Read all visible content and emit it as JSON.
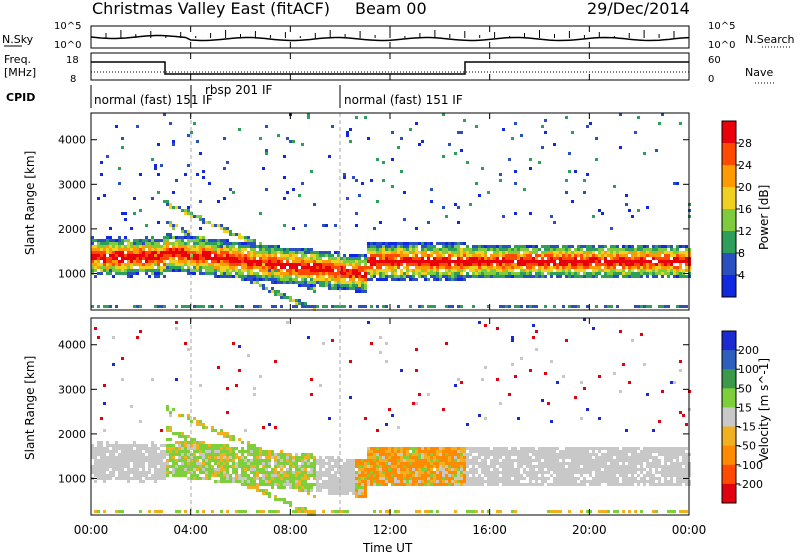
{
  "header": {
    "title": "Christmas Valley East (fitACF)",
    "beam": "Beam 00",
    "date": "29/Dec/2014"
  },
  "noise_panel": {
    "left_label": "N.Sky",
    "right_label": "N.Search",
    "left_ticks": [
      "10^5",
      "10^0"
    ],
    "right_ticks": [
      "10^5",
      "10^0"
    ]
  },
  "freq_panel": {
    "left_label_1": "Freq.",
    "left_label_2": "[MHz]",
    "right_label": "Nave",
    "left_ticks": [
      "18",
      "8"
    ],
    "right_ticks": [
      "60",
      "0"
    ]
  },
  "cpid": {
    "label": "CPID",
    "modes": [
      {
        "name": "normal (fast) 151 IF",
        "start_hour": 0
      },
      {
        "name": "rbsp 201 IF",
        "start_hour": 3
      },
      {
        "name": "normal (fast) 151 IF",
        "start_hour": 10
      }
    ]
  },
  "x_axis": {
    "label": "Time UT",
    "ticks": [
      "00:00",
      "04:00",
      "08:00",
      "12:00",
      "16:00",
      "20:00",
      "00:00"
    ]
  },
  "chart_data": [
    {
      "type": "heatmap",
      "title": "",
      "xlabel": "",
      "ylabel": "Slant Range [km]",
      "xlim": [
        0,
        24
      ],
      "ylim": [
        180,
        4600
      ],
      "yticks": [
        1000,
        2000,
        3000,
        4000
      ],
      "colorbar": {
        "label": "Power [dB]",
        "ticks": [
          "28",
          "24",
          "20",
          "16",
          "12",
          "8",
          "4"
        ],
        "colors": [
          "#e8000b",
          "#ff4a00",
          "#ff9a00",
          "#f0d020",
          "#7ecb3c",
          "#2e9e5b",
          "#2a4fbf",
          "#1028e0"
        ]
      },
      "features": [
        {
          "desc": "main echo band",
          "x_range": [
            0,
            24
          ],
          "range_km": [
            900,
            1900
          ],
          "power_db": [
            8,
            28
          ]
        },
        {
          "desc": "morning descending streaks",
          "x_range": [
            3,
            9
          ],
          "range_km": [
            1000,
            3000
          ],
          "power_db": [
            4,
            20
          ]
        },
        {
          "desc": "ground scatter line",
          "x_range": [
            0,
            24
          ],
          "range_km": [
            250,
            300
          ],
          "power_db": [
            4,
            16
          ]
        }
      ]
    },
    {
      "type": "heatmap",
      "title": "",
      "xlabel": "Time UT",
      "ylabel": "Slant Range [km]",
      "xlim": [
        0,
        24
      ],
      "ylim": [
        180,
        4600
      ],
      "yticks": [
        1000,
        2000,
        3000,
        4000
      ],
      "colorbar": {
        "label": "Velocity [m s^-1]",
        "ticks": [
          "200",
          "100",
          "50",
          "15",
          "-15",
          "-50",
          "-100",
          "-200"
        ],
        "colors": [
          "#1a2ad0",
          "#2e5fbf",
          "#3b9a4a",
          "#7dd03a",
          "#c8c8c8",
          "#f0b020",
          "#ff8a00",
          "#ff4a00",
          "#e00010"
        ]
      },
      "features": [
        {
          "desc": "low-velocity ground scatter",
          "x_range": [
            0,
            24
          ],
          "range_km": [
            1000,
            2000
          ],
          "velocity": [
            -15,
            15
          ]
        },
        {
          "desc": "negative velocity patch",
          "x_range": [
            10.5,
            15
          ],
          "range_km": [
            800,
            1800
          ],
          "velocity": [
            -100,
            -15
          ]
        },
        {
          "desc": "positive velocity streaks",
          "x_range": [
            3,
            9
          ],
          "range_km": [
            1000,
            2000
          ],
          "velocity": [
            15,
            100
          ]
        }
      ]
    }
  ]
}
